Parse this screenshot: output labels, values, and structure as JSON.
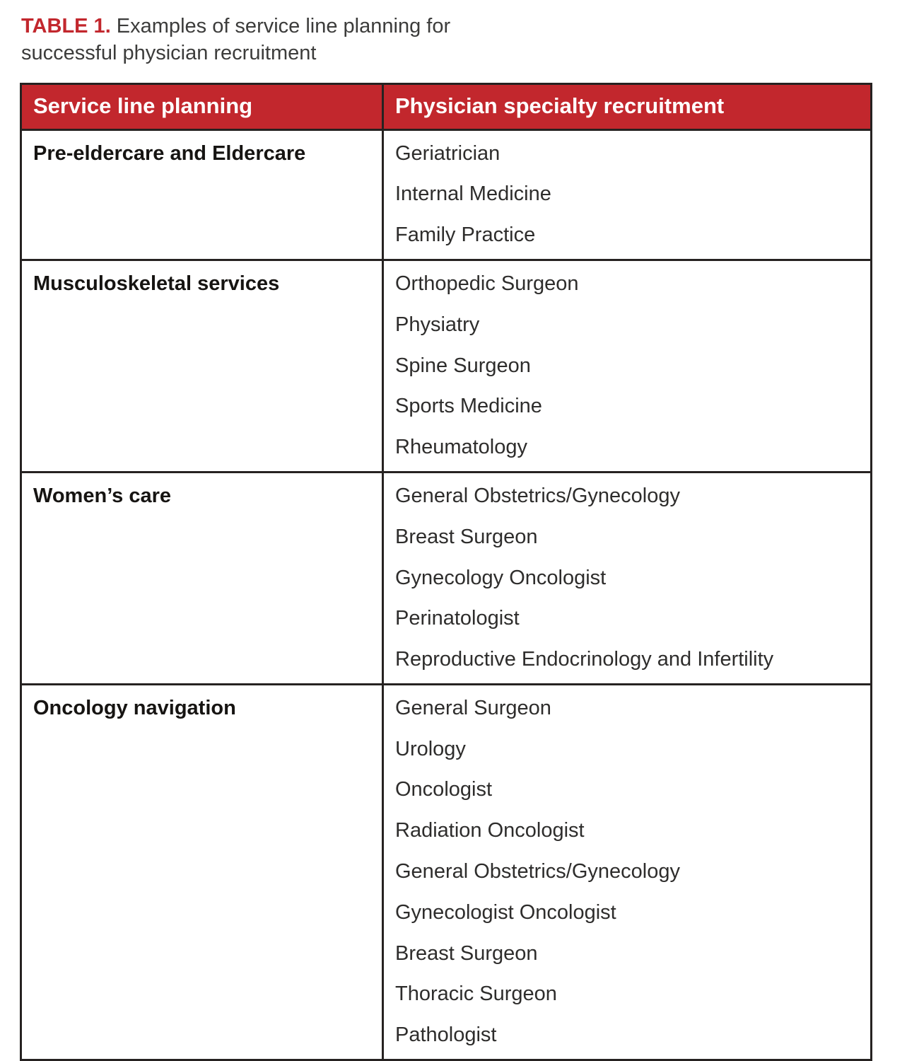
{
  "title": {
    "label": "TABLE 1.",
    "text": " Examples of service line planning for successful physician recruitment"
  },
  "colors": {
    "accent_red": "#c2272d",
    "header_background": "#c2272d",
    "header_text": "#ffffff",
    "border": "#262221",
    "body_text": "#2e2d2c"
  },
  "table": {
    "columns": [
      "Service line planning",
      "Physician specialty recruitment"
    ],
    "rows": [
      {
        "service_line": "Pre-eldercare and Eldercare",
        "specialties": [
          "Geriatrician",
          "Internal Medicine",
          "Family Practice"
        ]
      },
      {
        "service_line": "Musculoskeletal services",
        "specialties": [
          "Orthopedic Surgeon",
          "Physiatry",
          "Spine Surgeon",
          "Sports Medicine",
          "Rheumatology"
        ]
      },
      {
        "service_line": "Women’s care",
        "specialties": [
          "General Obstetrics/Gynecology",
          "Breast Surgeon",
          "Gynecology Oncologist",
          "Perinatologist",
          "Reproductive Endocrinology and Infertility"
        ]
      },
      {
        "service_line": "Oncology navigation",
        "specialties": [
          "General Surgeon",
          "Urology",
          "Oncologist",
          "Radiation Oncologist",
          "General Obstetrics/Gynecology",
          "Gynecologist Oncologist",
          "Breast Surgeon",
          "Thoracic Surgeon",
          "Pathologist"
        ]
      }
    ]
  }
}
